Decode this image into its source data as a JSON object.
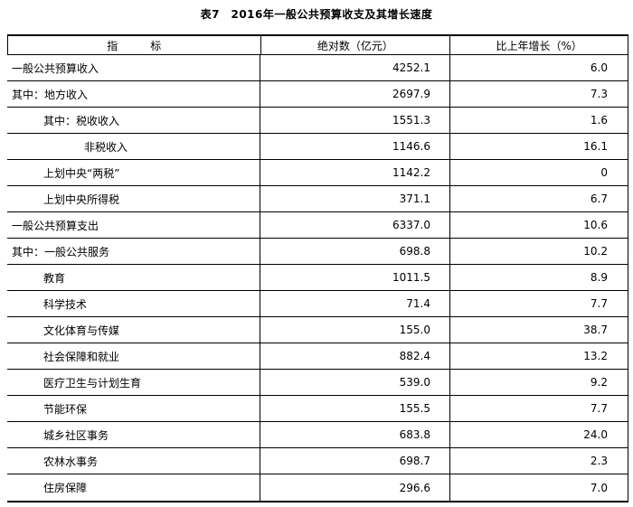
{
  "title": "表7　2016年一般公共预算收支及其增长速度",
  "colors": {
    "background": "#ffffff",
    "text": "#000000",
    "border": "#000000"
  },
  "table": {
    "headers": [
      "指　　　标",
      "绝对数（亿元）",
      "比上年增长（%）"
    ],
    "rows": [
      {
        "indicator": "一般公共预算收入",
        "indent": 0,
        "absolute": "4252.1",
        "growth": "6.0"
      },
      {
        "indicator": "其中：地方收入",
        "indent": 0,
        "absolute": "2697.9",
        "growth": "7.3"
      },
      {
        "indicator": "其中：税收收入",
        "indent": 1,
        "absolute": "1551.3",
        "growth": "1.6"
      },
      {
        "indicator": "非税收入",
        "indent": 2,
        "absolute": "1146.6",
        "growth": "16.1"
      },
      {
        "indicator": "上划中央“两税”",
        "indent": 1,
        "absolute": "1142.2",
        "growth": "0"
      },
      {
        "indicator": "上划中央所得税",
        "indent": 1,
        "absolute": "371.1",
        "growth": "6.7"
      },
      {
        "indicator": "一般公共预算支出",
        "indent": 0,
        "absolute": "6337.0",
        "growth": "10.6"
      },
      {
        "indicator": "其中：一般公共服务",
        "indent": 0,
        "absolute": "698.8",
        "growth": "10.2"
      },
      {
        "indicator": "教育",
        "indent": 1,
        "absolute": "1011.5",
        "growth": "8.9"
      },
      {
        "indicator": "科学技术",
        "indent": 1,
        "absolute": "71.4",
        "growth": "7.7"
      },
      {
        "indicator": "文化体育与传媒",
        "indent": 1,
        "absolute": "155.0",
        "growth": "38.7"
      },
      {
        "indicator": "社会保障和就业",
        "indent": 1,
        "absolute": "882.4",
        "growth": "13.2"
      },
      {
        "indicator": "医疗卫生与计划生育",
        "indent": 1,
        "absolute": "539.0",
        "growth": "9.2"
      },
      {
        "indicator": "节能环保",
        "indent": 1,
        "absolute": "155.5",
        "growth": "7.7"
      },
      {
        "indicator": "城乡社区事务",
        "indent": 1,
        "absolute": "683.8",
        "growth": "24.0"
      },
      {
        "indicator": "农林水事务",
        "indent": 1,
        "absolute": "698.7",
        "growth": "2.3"
      },
      {
        "indicator": "住房保障",
        "indent": 1,
        "absolute": "296.6",
        "growth": "7.0"
      }
    ]
  }
}
